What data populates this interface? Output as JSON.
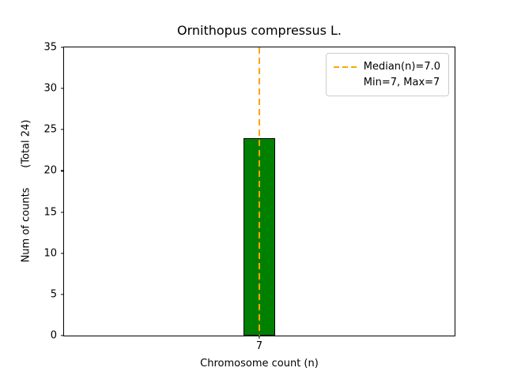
{
  "chart_data": {
    "type": "bar",
    "title": "Ornithopus compressus L.",
    "xlabel": "Chromosome count (n)",
    "ylabel": "Num of counts      (Total 24)",
    "categories": [
      "7"
    ],
    "values": [
      24
    ],
    "total": 24,
    "ylim": [
      0,
      35
    ],
    "yticks": [
      0,
      5,
      10,
      15,
      20,
      25,
      30,
      35
    ],
    "median": 7.0,
    "min": 7,
    "max": 7,
    "grid": false,
    "legend": {
      "position": "upper right",
      "entries": [
        "Median(n)=7.0",
        "Min=7, Max=7"
      ]
    },
    "colors": {
      "bar_fill": "#008000",
      "bar_edge": "#000000",
      "median_line": "#FFA500",
      "legend_border": "#cccccc"
    }
  }
}
